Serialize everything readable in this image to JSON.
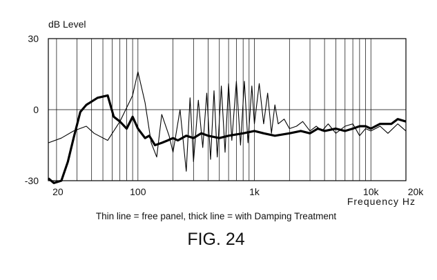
{
  "chart_data": {
    "type": "line",
    "title": "",
    "ylabel": "dB Level",
    "xlabel": "Frequency  Hz",
    "x_scale": "log",
    "xlim": [
      17,
      20000
    ],
    "ylim": [
      -30,
      30
    ],
    "y_ticks": [
      {
        "value": 30,
        "label": "30"
      },
      {
        "value": 0,
        "label": "0"
      },
      {
        "value": -30,
        "label": "-30"
      }
    ],
    "x_ticks": [
      {
        "value": 20,
        "label": "20"
      },
      {
        "value": 100,
        "label": "100"
      },
      {
        "value": 1000,
        "label": "1k"
      },
      {
        "value": 10000,
        "label": "10k"
      },
      {
        "value": 20000,
        "label": "20k"
      }
    ],
    "grid": true,
    "series": [
      {
        "style": "thin",
        "x": [
          17,
          22,
          28,
          36,
          42,
          55,
          70,
          90,
          100,
          115,
          130,
          145,
          160,
          185,
          200,
          230,
          260,
          280,
          300,
          330,
          360,
          390,
          420,
          450,
          480,
          520,
          560,
          600,
          640,
          700,
          760,
          820,
          880,
          950,
          1000,
          1100,
          1200,
          1300,
          1400,
          1500,
          1600,
          1800,
          2000,
          2300,
          2600,
          3000,
          3400,
          3800,
          4300,
          5000,
          6000,
          7000,
          8000,
          9000,
          10000,
          12000,
          14000,
          17000,
          20000
        ],
        "y": [
          -14,
          -12,
          -9,
          -7,
          -10,
          -13,
          -5,
          6,
          16,
          3,
          -14,
          -20,
          -2,
          -11,
          -18,
          0,
          -26,
          5,
          -22,
          4,
          -16,
          7,
          -21,
          8,
          -20,
          10,
          -18,
          11,
          -13,
          12,
          -15,
          12,
          -14,
          10,
          -6,
          11,
          -6,
          7,
          -10,
          2,
          -6,
          -4,
          -8,
          -7,
          -5,
          -9,
          -7,
          -9,
          -6,
          -10,
          -7,
          -6,
          -11,
          -8,
          -9,
          -7,
          -10,
          -6,
          -9
        ]
      },
      {
        "style": "thick",
        "x": [
          17,
          19,
          22,
          25,
          28,
          32,
          36,
          45,
          55,
          62,
          70,
          80,
          90,
          100,
          115,
          125,
          140,
          160,
          180,
          200,
          220,
          260,
          300,
          350,
          400,
          500,
          600,
          800,
          1000,
          1200,
          1500,
          2000,
          2500,
          3000,
          3500,
          4000,
          5000,
          6000,
          7000,
          8000,
          9000,
          10000,
          12000,
          15000,
          17000,
          20000
        ],
        "y": [
          -29,
          -31,
          -30,
          -22,
          -12,
          -1,
          2,
          5,
          6,
          -3,
          -5,
          -8,
          -3,
          -8,
          -12,
          -11,
          -15,
          -14,
          -13,
          -12,
          -13,
          -11,
          -12,
          -10,
          -11,
          -12,
          -11,
          -10,
          -9,
          -10,
          -11,
          -10,
          -9,
          -10,
          -8,
          -9,
          -8,
          -9,
          -8,
          -7,
          -7,
          -8,
          -6,
          -6,
          -4,
          -5
        ]
      }
    ],
    "caption": "Thin line = free panel, thick line = with Damping Treatment",
    "figure_label": "FIG. 24"
  }
}
